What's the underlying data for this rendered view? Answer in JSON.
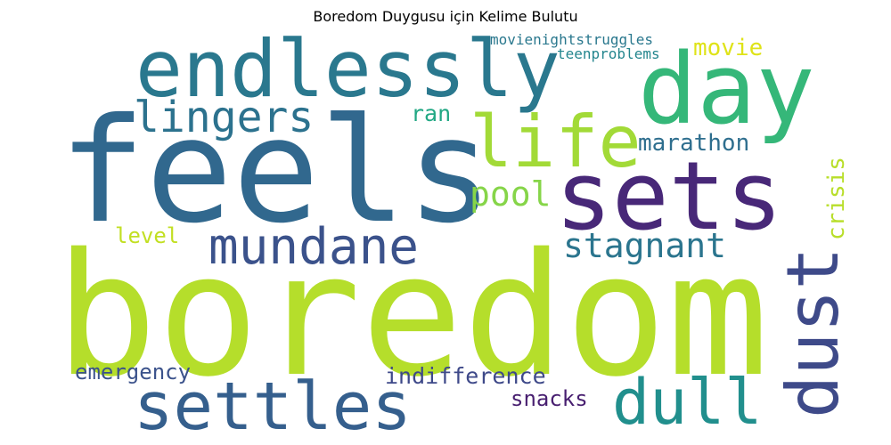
{
  "title": "Boredom Duygusu için Kelime Bulutu",
  "words": [
    {
      "text": "boredom",
      "color": "#b5de2b"
    },
    {
      "text": "feels",
      "color": "#31688e"
    },
    {
      "text": "sets",
      "color": "#482878"
    },
    {
      "text": "day",
      "color": "#35b779"
    },
    {
      "text": "endlessly",
      "color": "#2a788e"
    },
    {
      "text": "life",
      "color": "#a2da37"
    },
    {
      "text": "dust",
      "color": "#3e4a89"
    },
    {
      "text": "settles",
      "color": "#355f8d"
    },
    {
      "text": "dull",
      "color": "#218f8d"
    },
    {
      "text": "mundane",
      "color": "#3b528b"
    },
    {
      "text": "lingers",
      "color": "#2c728e"
    },
    {
      "text": "stagnant",
      "color": "#2b758e"
    },
    {
      "text": "pool",
      "color": "#86d549"
    },
    {
      "text": "marathon",
      "color": "#2e6e8e"
    },
    {
      "text": "crisis",
      "color": "#b8de29"
    },
    {
      "text": "movie",
      "color": "#dfe318"
    },
    {
      "text": "ran",
      "color": "#22a884"
    },
    {
      "text": "level",
      "color": "#c2df23"
    },
    {
      "text": "emergency",
      "color": "#3b528b"
    },
    {
      "text": "indifference",
      "color": "#3e4989"
    },
    {
      "text": "snacks",
      "color": "#481f70"
    },
    {
      "text": "movienightstruggles",
      "color": "#2a788e"
    },
    {
      "text": "teenproblems",
      "color": "#24868e"
    }
  ]
}
